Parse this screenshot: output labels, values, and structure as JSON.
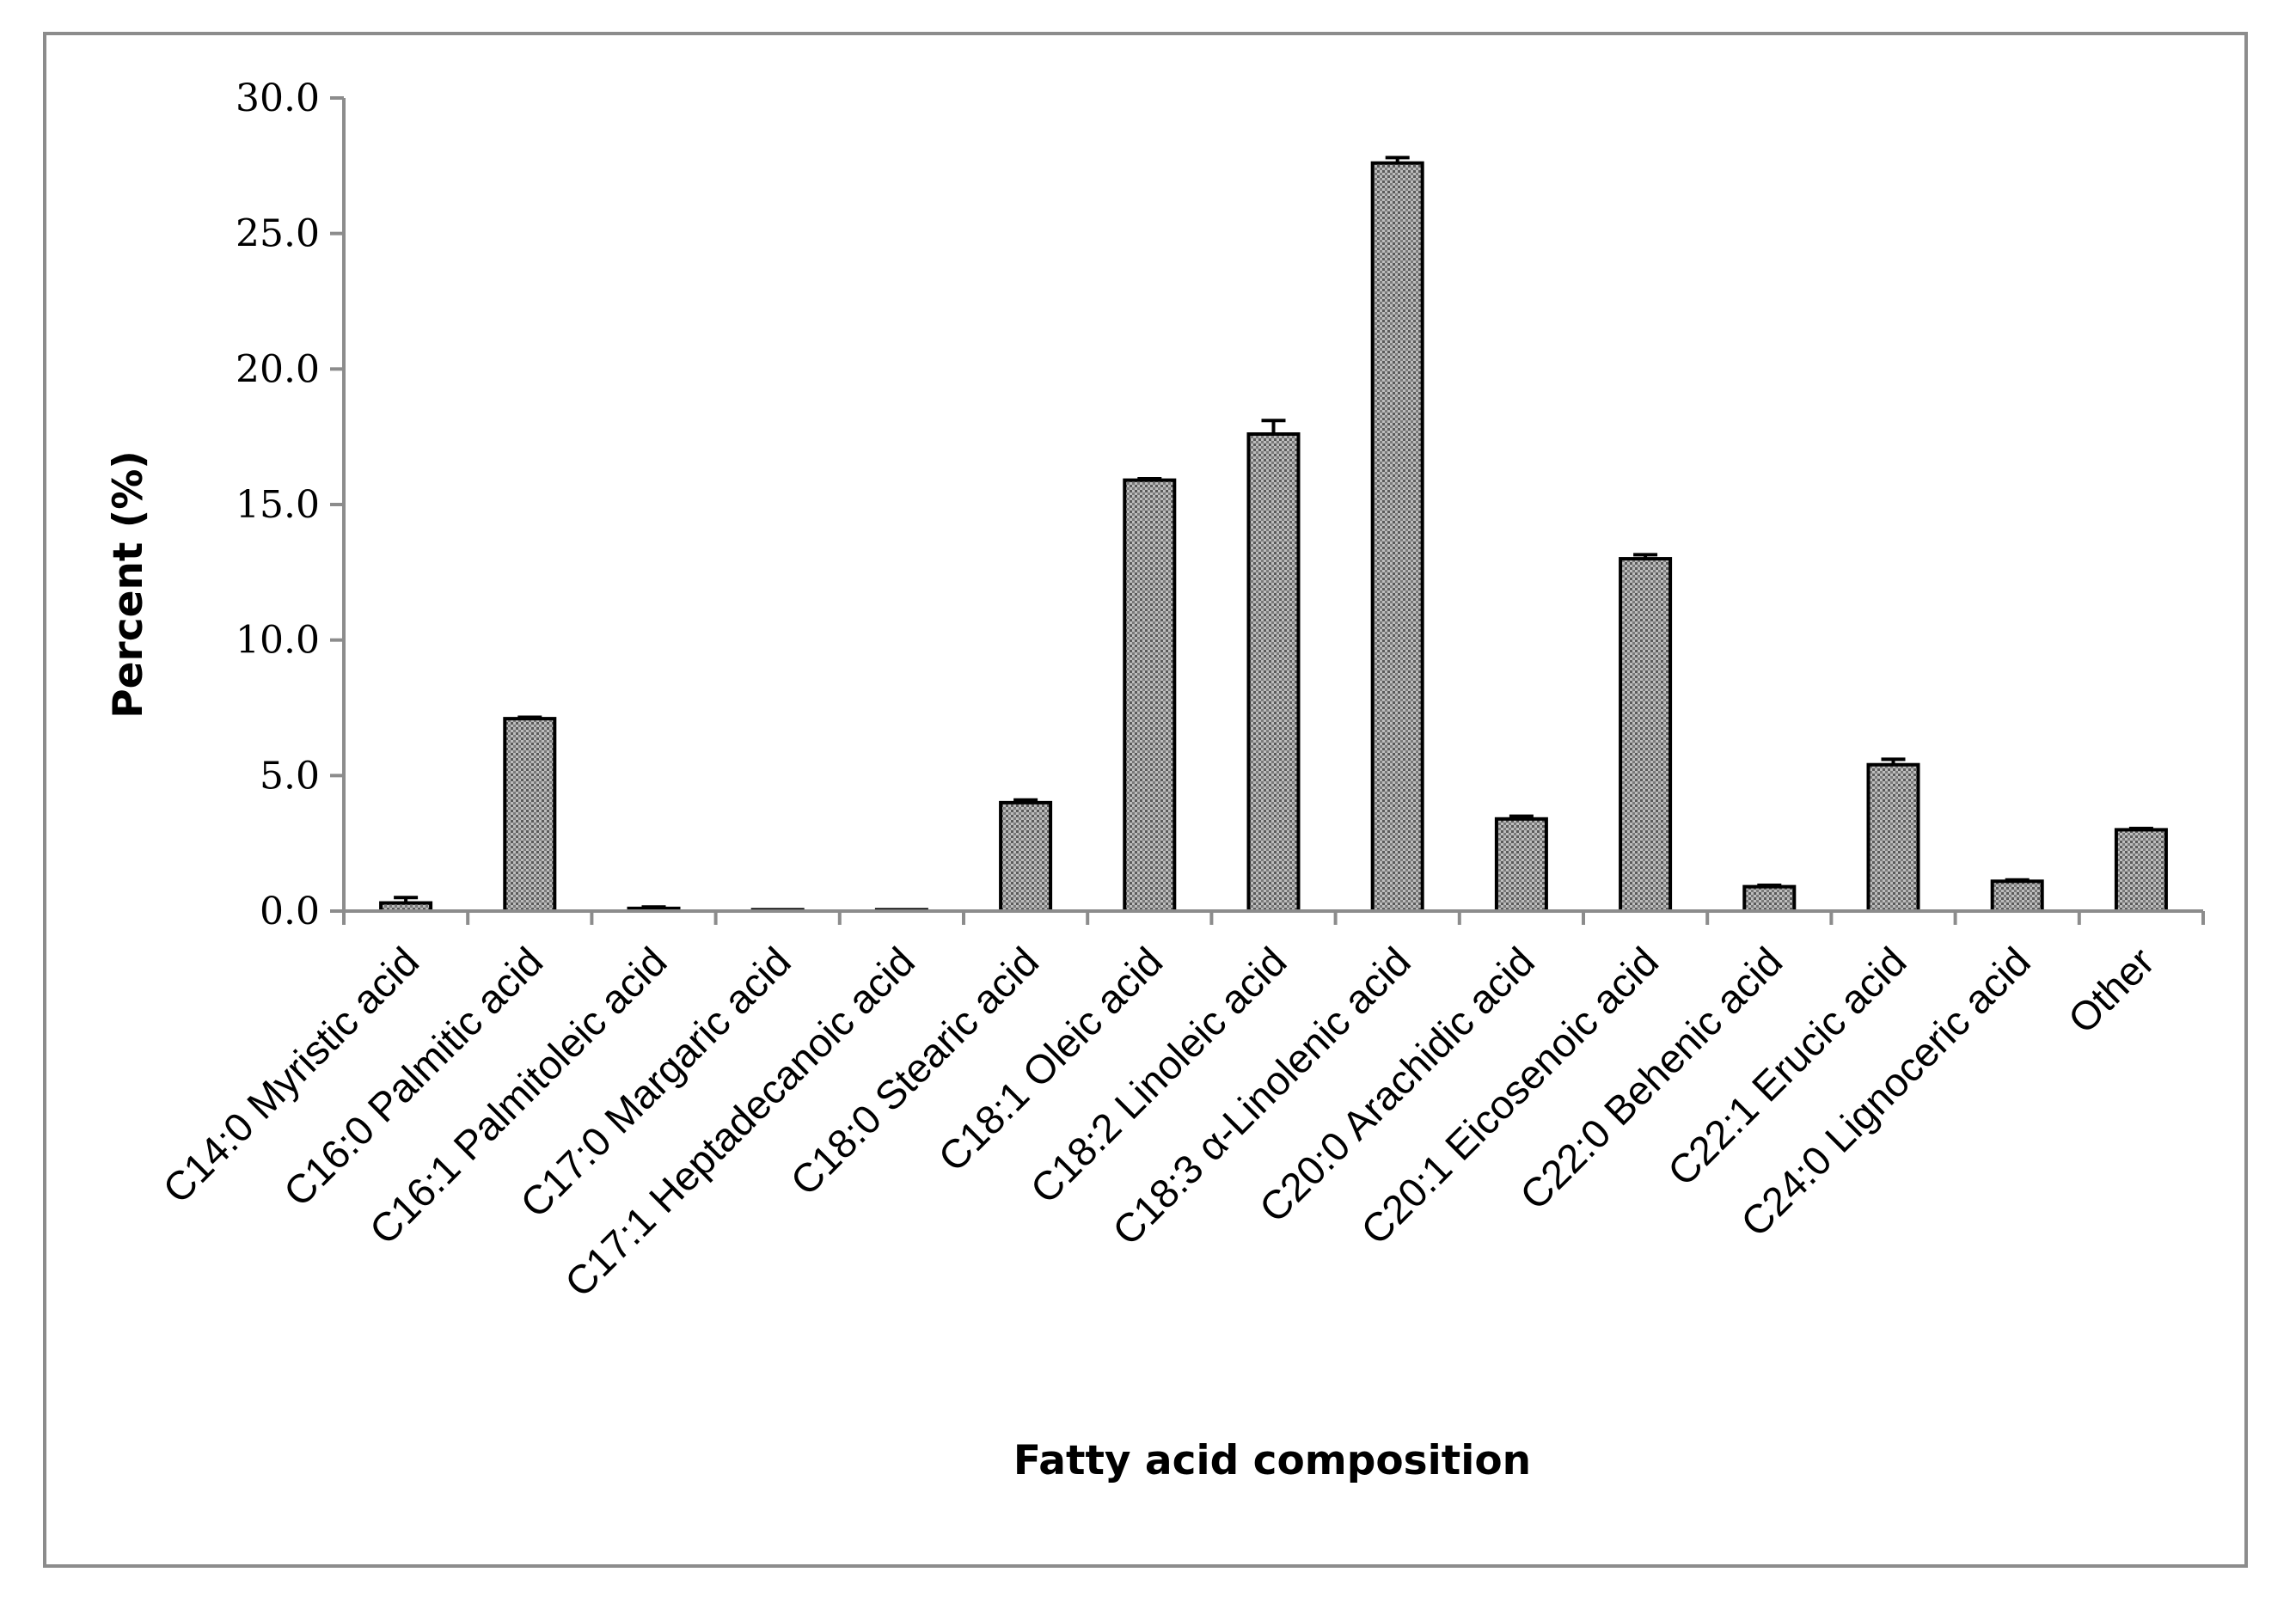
{
  "chart_data": {
    "type": "bar",
    "title": "",
    "xlabel": "Fatty acid composition",
    "ylabel": "Percent (%)",
    "ylim": [
      0,
      30
    ],
    "yticks": [
      "0.0",
      "5.0",
      "10.0",
      "15.0",
      "20.0",
      "25.0",
      "30.0"
    ],
    "grid": false,
    "legend": "none",
    "bar_color": "#a9a9a9",
    "categories": [
      "C14:0 Myristic acid",
      "C16:0 Palmitic acid",
      "C16:1 Palmitoleic acid",
      "C17:0 Margaric acid",
      "C17:1 Heptadecanoic acid",
      "C18:0 Stearic acid",
      "C18:1 Oleic acid",
      "C18:2 Linoleic acid",
      "C18:3 α-Linolenic acid",
      "C20:0 Arachidic acid",
      "C20:1 Eicosenoic acid",
      "C22:0 Behenic acid",
      "C22:1 Erucic acid",
      "C24:0 Lignoceric acid",
      "Other"
    ],
    "values": [
      0.3,
      7.1,
      0.1,
      0.05,
      0.05,
      4.0,
      15.9,
      17.6,
      27.6,
      3.4,
      13.0,
      0.9,
      5.4,
      1.1,
      3.0
    ],
    "errors": [
      0.2,
      0.05,
      0.05,
      0.0,
      0.0,
      0.1,
      0.05,
      0.5,
      0.2,
      0.1,
      0.15,
      0.05,
      0.2,
      0.05,
      0.05
    ]
  }
}
